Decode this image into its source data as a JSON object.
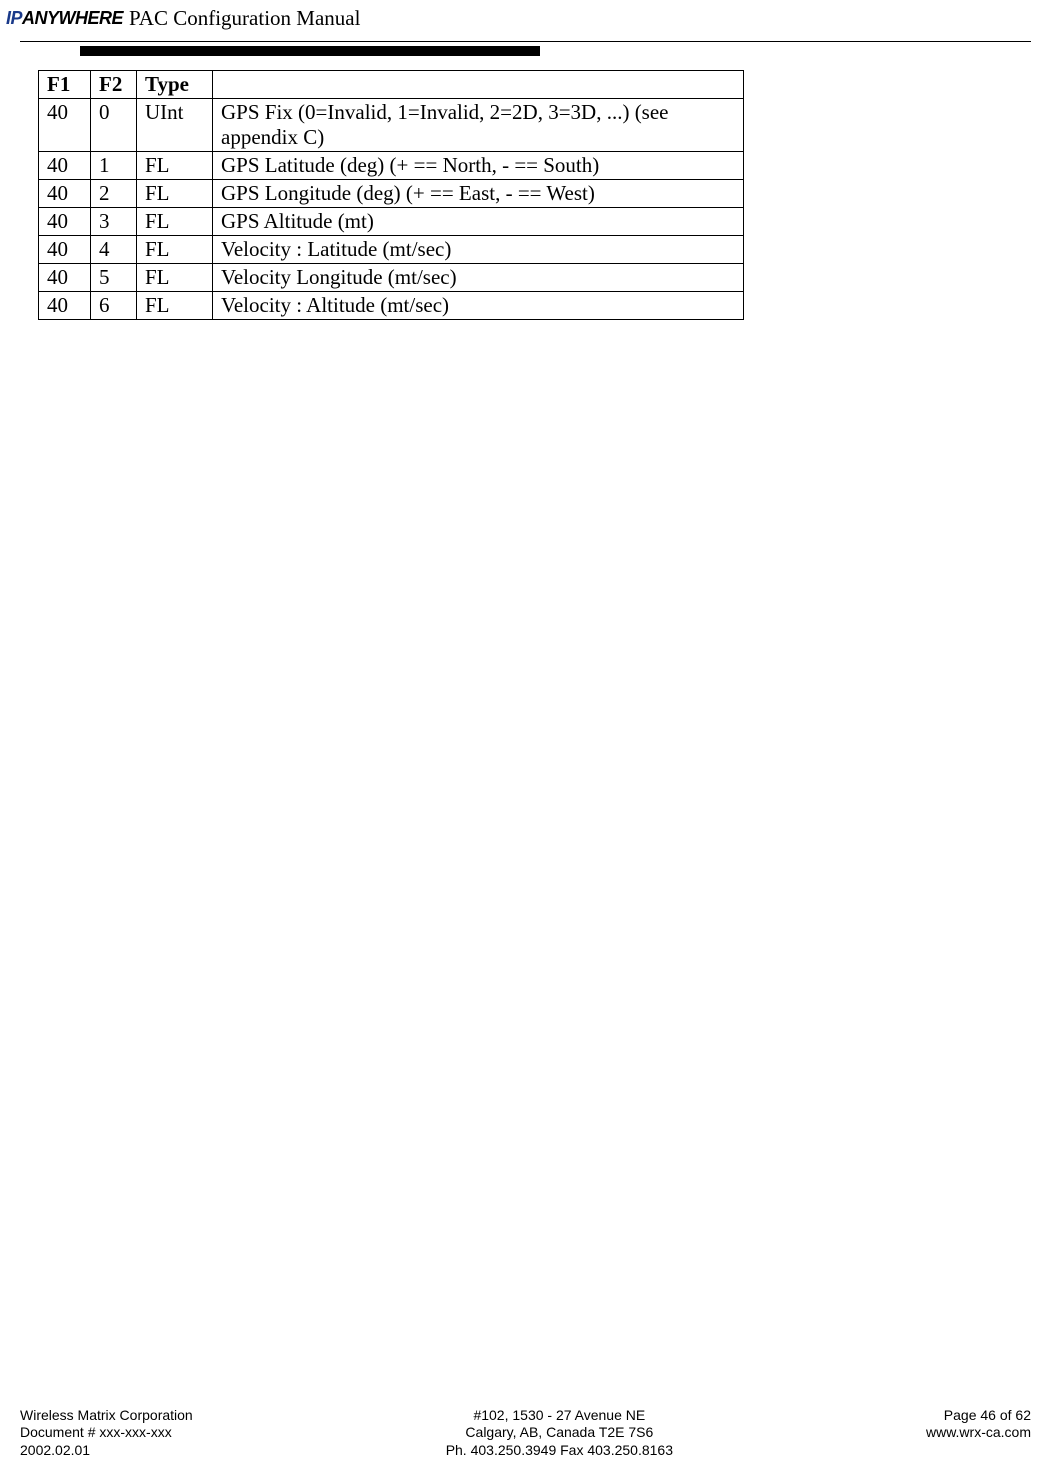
{
  "header": {
    "logo_prefix": "IP",
    "logo_rest": "ANYWHERE",
    "doc_title": " PAC Configuration Manual"
  },
  "table": {
    "columns": [
      "F1",
      "F2",
      "Type",
      ""
    ],
    "rows": [
      [
        "40",
        "0",
        "UInt",
        "GPS Fix (0=Invalid, 1=Invalid, 2=2D, 3=3D, ...) (see appendix C)"
      ],
      [
        "40",
        "1",
        "FL",
        "GPS Latitude  (deg)  (+ == North, - == South)"
      ],
      [
        "40",
        "2",
        "FL",
        "GPS Longitude (deg)  (+ == East,  - == West)"
      ],
      [
        "40",
        "3",
        "FL",
        "GPS Altitude  (mt)"
      ],
      [
        "40",
        "4",
        "FL",
        "Velocity : Latitude  (mt/sec)"
      ],
      [
        "40",
        "5",
        "FL",
        "Velocity Longitude (mt/sec)"
      ],
      [
        "40",
        "6",
        "FL",
        "Velocity : Altitude  (mt/sec)"
      ]
    ]
  },
  "footer": {
    "left": {
      "line1": "Wireless Matrix Corporation",
      "line2": "Document # xxx-xxx-xxx",
      "line3": "2002.02.01"
    },
    "center": {
      "line1": "#102, 1530 - 27 Avenue NE",
      "line2": "Calgary, AB, Canada  T2E 7S6",
      "line3": "Ph. 403.250.3949  Fax 403.250.8163"
    },
    "right": {
      "line1": "Page 46 of 62",
      "line2": "",
      "line3": "www.wrx-ca.com"
    }
  }
}
